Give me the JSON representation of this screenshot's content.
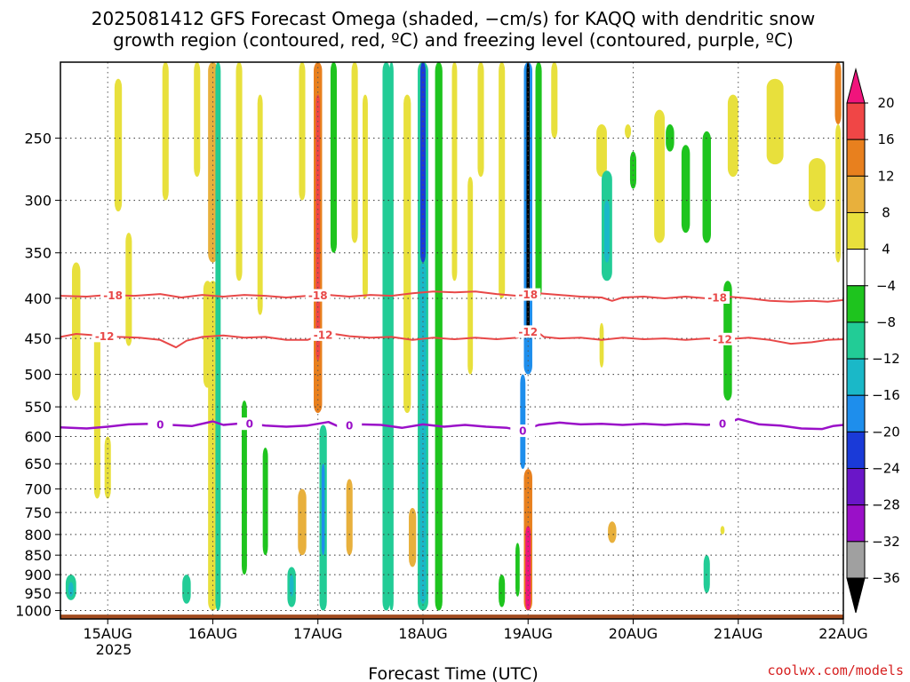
{
  "title": {
    "line1": "2025081412 GFS Forecast Omega (shaded, −cm/s) for KAQQ with dendritic snow",
    "line2": "growth region (contoured, red, ºC) and freezing level (contoured, purple, ºC)"
  },
  "credit": "coolwx.com/models",
  "chart_data": {
    "type": "heatmap",
    "xlabel": "Forecast Time (UTC)",
    "x_ticks": [
      "15AUG",
      "16AUG",
      "17AUG",
      "18AUG",
      "19AUG",
      "20AUG",
      "21AUG",
      "22AUG"
    ],
    "x_tick_year": "2025",
    "xlim_days": [
      14.55,
      22.0
    ],
    "y_scale": "log",
    "ylim_hpa": [
      200,
      1025
    ],
    "y_ticks": [
      250,
      300,
      350,
      400,
      450,
      500,
      550,
      600,
      650,
      700,
      750,
      800,
      850,
      900,
      950,
      1000
    ],
    "grid": true,
    "colorbar": {
      "colors": [
        "#000000",
        "#a0a0a0",
        "#9a10c8",
        "#6a16c8",
        "#1a3ad8",
        "#1e8eec",
        "#1ab8c8",
        "#22cc96",
        "#1ec41e",
        "#ffffff",
        "#e8e03c",
        "#e8b03c",
        "#e8801e",
        "#f04646",
        "#f0147c"
      ],
      "bounds": [
        -36,
        -32,
        -28,
        -24,
        -20,
        -16,
        -12,
        -8,
        -4,
        4,
        8,
        12,
        16,
        20
      ],
      "labels": [
        "20",
        "16",
        "12",
        "8",
        "4",
        "−4",
        "−8",
        "−12",
        "−16",
        "−20",
        "−24",
        "−28",
        "−32",
        "−36"
      ]
    },
    "dgz_contours": [
      {
        "name": "-18",
        "color": "#e84848",
        "label_times": [
          15.05,
          17.0,
          19.0,
          20.8
        ],
        "points": [
          [
            14.55,
            397
          ],
          [
            14.8,
            398
          ],
          [
            15.0,
            396
          ],
          [
            15.25,
            397
          ],
          [
            15.5,
            395
          ],
          [
            15.7,
            399
          ],
          [
            15.9,
            396
          ],
          [
            16.1,
            398
          ],
          [
            16.3,
            396
          ],
          [
            16.5,
            397
          ],
          [
            16.7,
            399
          ],
          [
            16.9,
            397
          ],
          [
            17.1,
            396
          ],
          [
            17.3,
            398
          ],
          [
            17.5,
            396
          ],
          [
            17.7,
            397
          ],
          [
            17.9,
            394
          ],
          [
            18.1,
            392
          ],
          [
            18.3,
            393
          ],
          [
            18.5,
            392
          ],
          [
            18.7,
            395
          ],
          [
            18.9,
            397
          ],
          [
            19.1,
            394
          ],
          [
            19.3,
            396
          ],
          [
            19.5,
            398
          ],
          [
            19.7,
            399
          ],
          [
            19.8,
            403
          ],
          [
            19.9,
            399
          ],
          [
            20.1,
            398
          ],
          [
            20.3,
            400
          ],
          [
            20.5,
            398
          ],
          [
            20.7,
            400
          ],
          [
            20.9,
            398
          ],
          [
            21.1,
            400
          ],
          [
            21.3,
            403
          ],
          [
            21.5,
            404
          ],
          [
            21.7,
            403
          ],
          [
            21.85,
            404
          ],
          [
            22.0,
            402
          ]
        ]
      },
      {
        "name": "-12",
        "color": "#e84848",
        "label_times": [
          14.97,
          17.05,
          19.0,
          20.85
        ],
        "points": [
          [
            14.55,
            448
          ],
          [
            14.7,
            444
          ],
          [
            14.9,
            446
          ],
          [
            15.1,
            448
          ],
          [
            15.3,
            449
          ],
          [
            15.5,
            452
          ],
          [
            15.65,
            462
          ],
          [
            15.75,
            453
          ],
          [
            15.9,
            448
          ],
          [
            16.1,
            446
          ],
          [
            16.3,
            449
          ],
          [
            16.5,
            448
          ],
          [
            16.7,
            452
          ],
          [
            16.9,
            452
          ],
          [
            17.0,
            447
          ],
          [
            17.1,
            443
          ],
          [
            17.3,
            447
          ],
          [
            17.5,
            449
          ],
          [
            17.7,
            448
          ],
          [
            17.9,
            452
          ],
          [
            18.1,
            449
          ],
          [
            18.3,
            451
          ],
          [
            18.5,
            449
          ],
          [
            18.7,
            451
          ],
          [
            18.9,
            449
          ],
          [
            19.05,
            437
          ],
          [
            19.15,
            448
          ],
          [
            19.3,
            450
          ],
          [
            19.5,
            449
          ],
          [
            19.7,
            452
          ],
          [
            19.9,
            449
          ],
          [
            20.1,
            451
          ],
          [
            20.3,
            450
          ],
          [
            20.5,
            452
          ],
          [
            20.7,
            450
          ],
          [
            20.9,
            451
          ],
          [
            21.1,
            449
          ],
          [
            21.3,
            452
          ],
          [
            21.5,
            457
          ],
          [
            21.7,
            455
          ],
          [
            21.85,
            452
          ],
          [
            22.0,
            451
          ]
        ]
      }
    ],
    "freezing_contour": {
      "name": "0",
      "color": "#9a10c8",
      "label_times": [
        15.5,
        16.35,
        17.3,
        18.95,
        20.85
      ],
      "points": [
        [
          14.55,
          584
        ],
        [
          14.8,
          586
        ],
        [
          15.0,
          583
        ],
        [
          15.2,
          579
        ],
        [
          15.4,
          578
        ],
        [
          15.6,
          580
        ],
        [
          15.8,
          582
        ],
        [
          16.0,
          574
        ],
        [
          16.1,
          580
        ],
        [
          16.3,
          577
        ],
        [
          16.5,
          581
        ],
        [
          16.7,
          583
        ],
        [
          16.9,
          581
        ],
        [
          17.1,
          575
        ],
        [
          17.2,
          583
        ],
        [
          17.4,
          579
        ],
        [
          17.6,
          580
        ],
        [
          17.8,
          585
        ],
        [
          18.0,
          579
        ],
        [
          18.2,
          583
        ],
        [
          18.4,
          580
        ],
        [
          18.6,
          583
        ],
        [
          18.8,
          585
        ],
        [
          18.95,
          590
        ],
        [
          19.1,
          580
        ],
        [
          19.3,
          576
        ],
        [
          19.5,
          579
        ],
        [
          19.7,
          578
        ],
        [
          19.9,
          580
        ],
        [
          20.1,
          578
        ],
        [
          20.3,
          580
        ],
        [
          20.5,
          578
        ],
        [
          20.7,
          580
        ],
        [
          20.9,
          577
        ],
        [
          21.0,
          570
        ],
        [
          21.2,
          579
        ],
        [
          21.4,
          581
        ],
        [
          21.6,
          586
        ],
        [
          21.8,
          587
        ],
        [
          21.9,
          582
        ],
        [
          22.0,
          580
        ]
      ]
    },
    "ground_band": {
      "color": "#a24c20",
      "p_top": 1012,
      "p_bottom": 1025
    },
    "shaded_cells": [
      {
        "t": 14.7,
        "hw": 0.04,
        "p1": 360,
        "p2": 540,
        "v": 5
      },
      {
        "t": 14.9,
        "hw": 0.03,
        "p1": 440,
        "p2": 720,
        "v": 5
      },
      {
        "t": 15.1,
        "hw": 0.035,
        "p1": 210,
        "p2": 310,
        "v": 5
      },
      {
        "t": 15.2,
        "hw": 0.03,
        "p1": 330,
        "p2": 460,
        "v": 5
      },
      {
        "t": 15.55,
        "hw": 0.03,
        "p1": 200,
        "p2": 300,
        "v": 5
      },
      {
        "t": 15.85,
        "hw": 0.03,
        "p1": 200,
        "p2": 280,
        "v": 5
      },
      {
        "t": 15.95,
        "hw": 0.04,
        "p1": 380,
        "p2": 520,
        "v": 5
      },
      {
        "t": 16.0,
        "hw": 0.045,
        "p1": 200,
        "p2": 360,
        "v": 9
      },
      {
        "t": 16.0,
        "hw": 0.045,
        "p1": 380,
        "p2": 1000,
        "v": 6
      },
      {
        "t": 16.05,
        "hw": 0.025,
        "p1": 200,
        "p2": 1000,
        "v": -9
      },
      {
        "t": 16.25,
        "hw": 0.03,
        "p1": 200,
        "p2": 380,
        "v": 5
      },
      {
        "t": 16.3,
        "hw": 0.025,
        "p1": 540,
        "p2": 900,
        "v": -5
      },
      {
        "t": 16.45,
        "hw": 0.025,
        "p1": 220,
        "p2": 420,
        "v": 5
      },
      {
        "t": 16.5,
        "hw": 0.025,
        "p1": 620,
        "p2": 850,
        "v": -5
      },
      {
        "t": 16.85,
        "hw": 0.03,
        "p1": 200,
        "p2": 300,
        "v": 5
      },
      {
        "t": 17.0,
        "hw": 0.04,
        "p1": 200,
        "p2": 560,
        "v": 13
      },
      {
        "t": 17.0,
        "hw": 0.02,
        "p1": 220,
        "p2": 480,
        "v": 17
      },
      {
        "t": 17.05,
        "hw": 0.035,
        "p1": 580,
        "p2": 1000,
        "v": -9
      },
      {
        "t": 17.05,
        "hw": 0.015,
        "p1": 650,
        "p2": 850,
        "v": -18
      },
      {
        "t": 17.15,
        "hw": 0.03,
        "p1": 200,
        "p2": 350,
        "v": -5
      },
      {
        "t": 16.85,
        "hw": 0.04,
        "p1": 700,
        "p2": 850,
        "v": 9
      },
      {
        "t": 17.3,
        "hw": 0.03,
        "p1": 680,
        "p2": 850,
        "v": 9
      },
      {
        "t": 17.35,
        "hw": 0.03,
        "p1": 200,
        "p2": 340,
        "v": 5
      },
      {
        "t": 17.45,
        "hw": 0.025,
        "p1": 220,
        "p2": 400,
        "v": 5
      },
      {
        "t": 17.65,
        "hw": 0.035,
        "p1": 200,
        "p2": 1000,
        "v": -9
      },
      {
        "t": 17.7,
        "hw": 0.02,
        "p1": 200,
        "p2": 1000,
        "v": -11
      },
      {
        "t": 17.85,
        "hw": 0.035,
        "p1": 220,
        "p2": 560,
        "v": 5
      },
      {
        "t": 17.9,
        "hw": 0.035,
        "p1": 740,
        "p2": 880,
        "v": 9
      },
      {
        "t": 18.0,
        "hw": 0.05,
        "p1": 200,
        "p2": 1000,
        "v": -9
      },
      {
        "t": 18.0,
        "hw": 0.025,
        "p1": 200,
        "p2": 360,
        "v": -22
      },
      {
        "t": 18.0,
        "hw": 0.03,
        "p1": 360,
        "p2": 980,
        "v": -13
      },
      {
        "t": 18.15,
        "hw": 0.035,
        "p1": 200,
        "p2": 1000,
        "v": -6
      },
      {
        "t": 18.3,
        "hw": 0.025,
        "p1": 200,
        "p2": 380,
        "v": 5
      },
      {
        "t": 18.45,
        "hw": 0.025,
        "p1": 280,
        "p2": 500,
        "v": 5
      },
      {
        "t": 18.55,
        "hw": 0.03,
        "p1": 200,
        "p2": 280,
        "v": 5
      },
      {
        "t": 18.75,
        "hw": 0.03,
        "p1": 200,
        "p2": 400,
        "v": 5
      },
      {
        "t": 18.75,
        "hw": 0.03,
        "p1": 900,
        "p2": 990,
        "v": -5
      },
      {
        "t": 18.9,
        "hw": 0.02,
        "p1": 820,
        "p2": 960,
        "v": -5
      },
      {
        "t": 19.0,
        "hw": 0.04,
        "p1": 200,
        "p2": 500,
        "v": -20
      },
      {
        "t": 19.0,
        "hw": 0.015,
        "p1": 200,
        "p2": 450,
        "v": -40
      },
      {
        "t": 18.95,
        "hw": 0.025,
        "p1": 500,
        "p2": 660,
        "v": -17
      },
      {
        "t": 19.0,
        "hw": 0.04,
        "p1": 660,
        "p2": 1000,
        "v": 13
      },
      {
        "t": 19.0,
        "hw": 0.025,
        "p1": 780,
        "p2": 1000,
        "v": 22
      },
      {
        "t": 19.1,
        "hw": 0.03,
        "p1": 200,
        "p2": 400,
        "v": -6
      },
      {
        "t": 19.25,
        "hw": 0.03,
        "p1": 200,
        "p2": 250,
        "v": 5
      },
      {
        "t": 19.7,
        "hw": 0.05,
        "p1": 240,
        "p2": 280,
        "v": 5
      },
      {
        "t": 19.75,
        "hw": 0.05,
        "p1": 275,
        "p2": 380,
        "v": -9
      },
      {
        "t": 19.75,
        "hw": 0.025,
        "p1": 300,
        "p2": 360,
        "v": -14
      },
      {
        "t": 19.7,
        "hw": 0.02,
        "p1": 430,
        "p2": 490,
        "v": 5
      },
      {
        "t": 19.8,
        "hw": 0.04,
        "p1": 770,
        "p2": 820,
        "v": 9
      },
      {
        "t": 19.95,
        "hw": 0.03,
        "p1": 240,
        "p2": 250,
        "v": 5
      },
      {
        "t": 20.25,
        "hw": 0.05,
        "p1": 230,
        "p2": 340,
        "v": 5
      },
      {
        "t": 20.35,
        "hw": 0.04,
        "p1": 240,
        "p2": 260,
        "v": -6
      },
      {
        "t": 20.5,
        "hw": 0.04,
        "p1": 255,
        "p2": 330,
        "v": -6
      },
      {
        "t": 20.7,
        "hw": 0.04,
        "p1": 245,
        "p2": 340,
        "v": -6
      },
      {
        "t": 20.7,
        "hw": 0.03,
        "p1": 850,
        "p2": 950,
        "v": -10
      },
      {
        "t": 20.85,
        "hw": 0.02,
        "p1": 780,
        "p2": 800,
        "v": 5
      },
      {
        "t": 20.9,
        "hw": 0.04,
        "p1": 380,
        "p2": 540,
        "v": -6
      },
      {
        "t": 20.95,
        "hw": 0.05,
        "p1": 220,
        "p2": 280,
        "v": 5
      },
      {
        "t": 21.35,
        "hw": 0.08,
        "p1": 210,
        "p2": 270,
        "v": 5
      },
      {
        "t": 21.75,
        "hw": 0.08,
        "p1": 265,
        "p2": 310,
        "v": 5
      },
      {
        "t": 21.95,
        "hw": 0.03,
        "p1": 200,
        "p2": 240,
        "v": 13
      },
      {
        "t": 21.95,
        "hw": 0.025,
        "p1": 240,
        "p2": 360,
        "v": 5
      },
      {
        "t": 15.0,
        "hw": 0.03,
        "p1": 600,
        "p2": 720,
        "v": 5
      },
      {
        "t": 14.65,
        "hw": 0.05,
        "p1": 900,
        "p2": 970,
        "v": -9
      },
      {
        "t": 14.65,
        "hw": 0.025,
        "p1": 920,
        "p2": 960,
        "v": -15
      },
      {
        "t": 15.75,
        "hw": 0.04,
        "p1": 900,
        "p2": 980,
        "v": -9
      },
      {
        "t": 16.75,
        "hw": 0.04,
        "p1": 880,
        "p2": 990,
        "v": -9
      },
      {
        "t": 16.75,
        "hw": 0.02,
        "p1": 900,
        "p2": 960,
        "v": -14
      },
      {
        "t": 20.0,
        "hw": 0.03,
        "p1": 260,
        "p2": 290,
        "v": -5
      }
    ]
  }
}
